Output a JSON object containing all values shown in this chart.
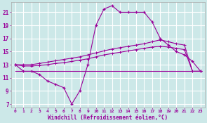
{
  "xlabel": "Windchill (Refroidissement éolien,°C)",
  "background_color": "#cce8e8",
  "line_color": "#990099",
  "grid_color": "#ffffff",
  "x_hours": [
    0,
    1,
    2,
    3,
    4,
    5,
    6,
    7,
    8,
    9,
    10,
    11,
    12,
    13,
    14,
    15,
    16,
    17,
    18,
    19,
    20,
    21,
    22,
    23
  ],
  "y_windchill": [
    13,
    12,
    12,
    11.5,
    10.5,
    10,
    9.5,
    7,
    9,
    13,
    19,
    21.5,
    22,
    21,
    21,
    21,
    21,
    19.5,
    17,
    16,
    15,
    14.5,
    13.5,
    12
  ],
  "y_line_upper": [
    13,
    13,
    13,
    13.2,
    13.4,
    13.6,
    13.8,
    14.0,
    14.2,
    14.5,
    14.8,
    15.1,
    15.4,
    15.6,
    15.8,
    16.0,
    16.2,
    16.5,
    16.8,
    16.5,
    16.2,
    16.0,
    12,
    12
  ],
  "y_line_mid": [
    13,
    12.8,
    12.8,
    12.9,
    13.0,
    13.2,
    13.3,
    13.5,
    13.7,
    13.9,
    14.2,
    14.5,
    14.7,
    14.9,
    15.1,
    15.3,
    15.5,
    15.7,
    15.8,
    15.7,
    15.5,
    15.3,
    12,
    12
  ],
  "y_line_flat": [
    12,
    12,
    12,
    12,
    12,
    12,
    12,
    12,
    12,
    12,
    12,
    12,
    12,
    12,
    12,
    12,
    12,
    12,
    12,
    12,
    12,
    12,
    12,
    12
  ],
  "ylim": [
    6.5,
    22.5
  ],
  "xlim": [
    -0.5,
    23.5
  ],
  "yticks": [
    7,
    9,
    11,
    13,
    15,
    17,
    19,
    21
  ],
  "xticks": [
    0,
    1,
    2,
    3,
    4,
    5,
    6,
    7,
    8,
    9,
    10,
    11,
    12,
    13,
    14,
    15,
    16,
    17,
    18,
    19,
    20,
    21,
    22,
    23
  ]
}
